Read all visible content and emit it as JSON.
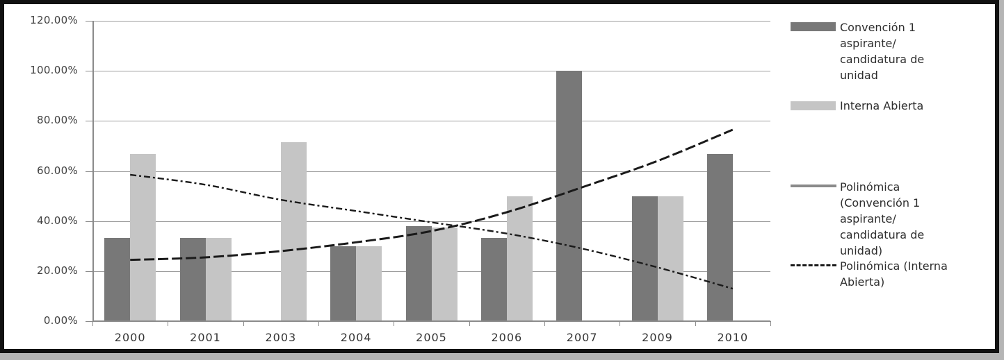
{
  "figure": {
    "kind": "excel-style clustered column chart with polynomial trendlines",
    "background": "#ffffff",
    "border_color": "#111111"
  },
  "colors": {
    "bar_dark": "#787878",
    "bar_light": "#c5c5c5",
    "grid": "#9c9c9c",
    "axis": "#8a8a8a",
    "trend": "#1a1a1a",
    "legend_line": "#8a8a8a",
    "text": "#3f3f3f"
  },
  "axes": {
    "y_ticks": [
      "120.00%",
      "100.00%",
      "80.00%",
      "60.00%",
      "40.00%",
      "20.00%",
      "0.00%"
    ],
    "x_ticks": [
      "2000",
      "2001",
      "2003",
      "2004",
      "2005",
      "2006",
      "2007",
      "2009",
      "2010"
    ]
  },
  "legend": {
    "items": [
      {
        "key": "convencion-bars",
        "swatch": "dark-rect",
        "label": "Convención 1\naspirante/\ncandidatura de\nunidad"
      },
      {
        "key": "interna-bars",
        "swatch": "light-rect",
        "label": "Interna Abierta"
      },
      {
        "key": "polinomica-convencion",
        "swatch": "solid-line",
        "label": "Polinómica\n(Convención 1\naspirante/\ncandidatura de\nunidad)"
      },
      {
        "key": "polinomica-interna",
        "swatch": "dashed-line",
        "label": "Polinómica (Interna\nAbierta)"
      }
    ]
  },
  "chart_data": {
    "type": "bar",
    "title": "",
    "xlabel": "",
    "ylabel": "",
    "ylim": [
      0,
      120
    ],
    "y_tick_step_pct": 20,
    "grid": true,
    "legend_position": "right",
    "categories": [
      "2000",
      "2001",
      "2003",
      "2004",
      "2005",
      "2006",
      "2007",
      "2009",
      "2010"
    ],
    "series": [
      {
        "name": "Convención 1 aspirante/candidatura de unidad",
        "color": "#787878",
        "values": [
          33.33,
          33.33,
          0,
          30,
          38,
          33.33,
          100,
          50,
          66.67
        ]
      },
      {
        "name": "Interna Abierta",
        "color": "#c5c5c5",
        "values": [
          66.67,
          33.33,
          71.43,
          30,
          37.5,
          50,
          0,
          50,
          0
        ]
      }
    ],
    "trendlines": [
      {
        "name": "Polinómica (Convención 1 aspirante/candidatura de unidad)",
        "style": "long-dash",
        "color": "#1a1a1a",
        "values_pct_at_categories": [
          24.5,
          25.5,
          28,
          31.5,
          36,
          43.5,
          53.5,
          64,
          76.5
        ]
      },
      {
        "name": "Polinómica (Interna Abierta)",
        "style": "dash-dot",
        "color": "#1a1a1a",
        "values_pct_at_categories": [
          58.5,
          54.5,
          48.5,
          44,
          39.5,
          35,
          29,
          21.5,
          13
        ]
      }
    ]
  }
}
